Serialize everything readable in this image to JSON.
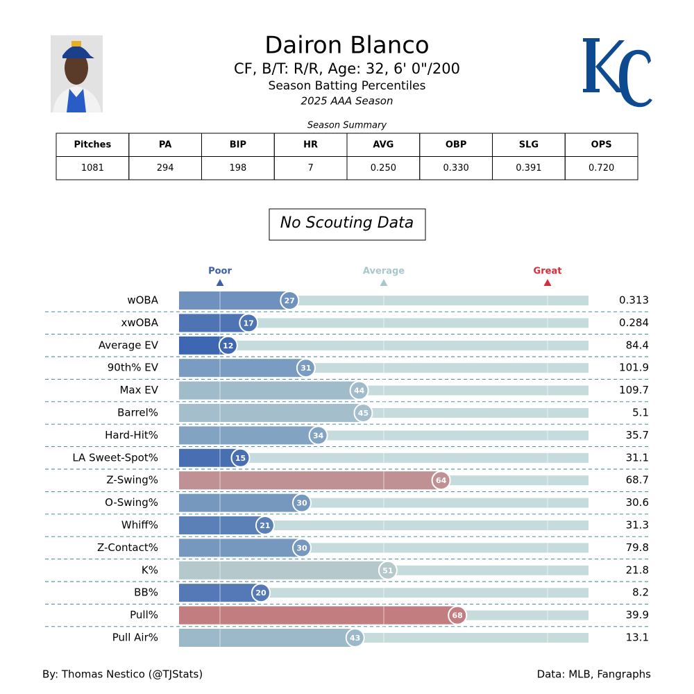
{
  "header": {
    "title": "Dairon Blanco",
    "subtitle": "CF, B/T: R/R, Age: 32, 6' 0\"/200",
    "report": "Season Batting Percentiles",
    "season": "2025 AAA Season"
  },
  "summary_table": {
    "caption": "Season Summary",
    "columns": [
      "Pitches",
      "PA",
      "BIP",
      "HR",
      "AVG",
      "OBP",
      "SLG",
      "OPS"
    ],
    "rows": [
      [
        "1081",
        "294",
        "198",
        "7",
        "0.250",
        "0.330",
        "0.391",
        "0.720"
      ]
    ]
  },
  "scouting": "No Scouting Data",
  "chart_data": {
    "type": "percentile",
    "categories": [
      "wOBA",
      "xwOBA",
      "Average EV",
      "90th% EV",
      "Max EV",
      "Barrel%",
      "Hard-Hit%",
      "LA Sweet-Spot%",
      "Z-Swing%",
      "O-Swing%",
      "Whiff%",
      "Z-Contact%",
      "K%",
      "BB%",
      "Pull%",
      "Pull Air%"
    ],
    "values": [
      27,
      17,
      12,
      31,
      44,
      45,
      34,
      15,
      64,
      30,
      21,
      30,
      51,
      20,
      68,
      43
    ],
    "colors": [
      "#6e91bd",
      "#4e74b4",
      "#3d67b1",
      "#7a9cc0",
      "#a0bccb",
      "#a4bfcb",
      "#82a3c2",
      "#476fb2",
      "#c09194",
      "#7698be",
      "#5b7fb7",
      "#7698be",
      "#b5c8cc",
      "#5479b6",
      "#c27d81",
      "#9cb9ca"
    ],
    "stats": [
      "0.313",
      "0.284",
      "84.4",
      "101.9",
      "109.7",
      "5.1",
      "35.7",
      "31.1",
      "68.7",
      "30.6",
      "31.3",
      "79.8",
      "21.8",
      "8.2",
      "39.9",
      "13.1"
    ],
    "xlim": [
      0,
      100
    ],
    "track_color": "#c6dbdc",
    "markers": [
      {
        "label": "Poor",
        "value": 10,
        "color": "#3d5fa9"
      },
      {
        "label": "Average",
        "value": 50,
        "color": "#a9c7cb"
      },
      {
        "label": "Great",
        "value": 90,
        "color": "#d62d3a"
      }
    ]
  },
  "footer": {
    "left": "By: Thomas Nestico (@TJStats)",
    "right": "Data: MLB, Fangraphs"
  }
}
